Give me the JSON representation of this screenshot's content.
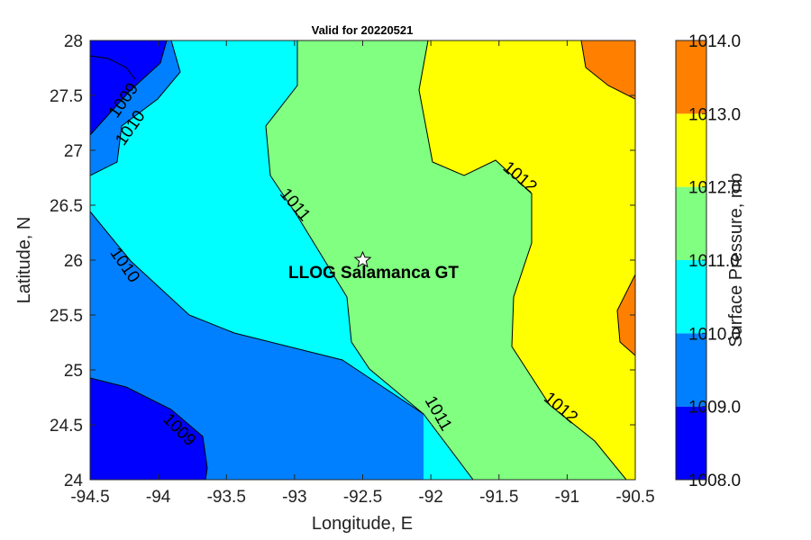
{
  "chart_data": {
    "type": "contour",
    "title": "Valid for 20220521",
    "xlabel": "Longitude, E",
    "ylabel": "Latitude, N",
    "xlim": [
      -94.5,
      -90.5
    ],
    "ylim": [
      24,
      28
    ],
    "xticks": [
      "-94.5",
      "-94",
      "-93.5",
      "-93",
      "-92.5",
      "-92",
      "-91.5",
      "-91",
      "-90.5"
    ],
    "yticks": [
      "24",
      "24.5",
      "25",
      "25.5",
      "26",
      "26.5",
      "27",
      "27.5",
      "28"
    ],
    "colorbar": {
      "label": "Surface Pressure, mb",
      "levels": [
        1008,
        1009,
        1010,
        1011,
        1012,
        1013,
        1014
      ],
      "tick_labels": [
        "1008.0",
        "1009.0",
        "1010.0",
        "1011.0",
        "1012.0",
        "1013.0",
        "1014.0"
      ],
      "colors": [
        "#0000ff",
        "#0080ff",
        "#00ffff",
        "#80ff80",
        "#ffff00",
        "#ff8000"
      ]
    },
    "contour_labels": [
      {
        "text": "1009",
        "lon": -94.25,
        "lat": 27.45
      },
      {
        "text": "1010",
        "lon": -94.2,
        "lat": 27.2
      },
      {
        "text": "1011",
        "lon": -93.0,
        "lat": 26.5
      },
      {
        "text": "1012",
        "lon": -91.35,
        "lat": 26.75
      },
      {
        "text": "1010",
        "lon": -94.25,
        "lat": 25.95
      },
      {
        "text": "1009",
        "lon": -93.85,
        "lat": 24.45
      },
      {
        "text": "1011",
        "lon": -91.95,
        "lat": 24.6
      },
      {
        "text": "1012",
        "lon": -91.05,
        "lat": 24.65
      }
    ],
    "marker": {
      "label": "LLOG Salamanca GT",
      "lon": -92.5,
      "lat": 26.0
    }
  }
}
